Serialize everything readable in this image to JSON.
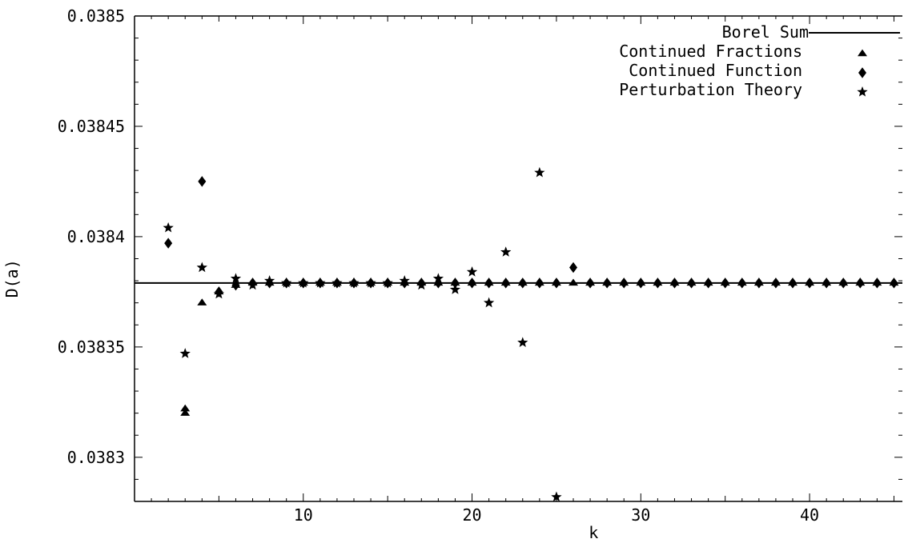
{
  "chart_data": {
    "type": "scatter",
    "title": "",
    "xlabel": "k",
    "ylabel": "D(a)",
    "xlim": [
      0,
      45.5
    ],
    "ylim": [
      0.03828,
      0.0385
    ],
    "x_ticks": [
      10,
      20,
      30,
      40
    ],
    "y_ticks": [
      0.0383,
      0.03835,
      0.0384,
      0.03845,
      0.0385
    ],
    "y_tick_labels": [
      "0.0383",
      "0.03835",
      "0.0384",
      "0.03845",
      "0.0385"
    ],
    "x_tick_labels": [
      "10",
      "20",
      "30",
      "40"
    ],
    "grid": false,
    "legend_position": "top-right",
    "reference_line": {
      "name": "Borel Sum",
      "y": 0.038379
    },
    "series": [
      {
        "name": "Continued Fractions",
        "marker": "triangle",
        "x": [
          3,
          3,
          4,
          5,
          6,
          7,
          8,
          9,
          10,
          11,
          12,
          13,
          14,
          15,
          16,
          17,
          18,
          19,
          20,
          21,
          22,
          23,
          24,
          25,
          26,
          27,
          28,
          29,
          30,
          31,
          32,
          33,
          34,
          35,
          36,
          37,
          38,
          39,
          40,
          41,
          42,
          43,
          44,
          45
        ],
        "y": [
          0.03832,
          0.038322,
          0.03837,
          0.038375,
          0.038378,
          0.038379,
          0.038379,
          0.038379,
          0.038379,
          0.038379,
          0.038379,
          0.038379,
          0.038379,
          0.038379,
          0.038379,
          0.038379,
          0.038379,
          0.038379,
          0.038379,
          0.038379,
          0.038379,
          0.038379,
          0.038379,
          0.038379,
          0.038379,
          0.038379,
          0.038379,
          0.038379,
          0.038379,
          0.038379,
          0.038379,
          0.038379,
          0.038379,
          0.038379,
          0.038379,
          0.038379,
          0.038379,
          0.038379,
          0.038379,
          0.038379,
          0.038379,
          0.038379,
          0.038379,
          0.038379
        ]
      },
      {
        "name": "Continued Function",
        "marker": "diamond",
        "x": [
          2,
          4,
          5,
          6,
          7,
          8,
          9,
          10,
          11,
          12,
          13,
          14,
          15,
          16,
          17,
          18,
          19,
          20,
          21,
          22,
          23,
          24,
          25,
          26,
          27,
          28,
          29,
          30,
          31,
          32,
          33,
          34,
          35,
          36,
          37,
          38,
          39,
          40,
          41,
          42,
          43,
          44,
          45
        ],
        "y": [
          0.038397,
          0.038425,
          0.038375,
          0.038378,
          0.038379,
          0.038379,
          0.038379,
          0.038379,
          0.038379,
          0.038379,
          0.038379,
          0.038379,
          0.038379,
          0.038379,
          0.038379,
          0.038379,
          0.038379,
          0.038379,
          0.038379,
          0.038379,
          0.038379,
          0.038379,
          0.038379,
          0.038386,
          0.038379,
          0.038379,
          0.038379,
          0.038379,
          0.038379,
          0.038379,
          0.038379,
          0.038379,
          0.038379,
          0.038379,
          0.038379,
          0.038379,
          0.038379,
          0.038379,
          0.038379,
          0.038379,
          0.038379,
          0.038379,
          0.038379
        ]
      },
      {
        "name": "Perturbation Theory",
        "marker": "star",
        "x": [
          2,
          3,
          4,
          5,
          6,
          7,
          8,
          9,
          10,
          11,
          12,
          13,
          14,
          15,
          16,
          17,
          18,
          19,
          20,
          21,
          22,
          23,
          24,
          25
        ],
        "y": [
          0.038404,
          0.038347,
          0.038386,
          0.038374,
          0.038381,
          0.038378,
          0.03838,
          0.038379,
          0.038379,
          0.038379,
          0.038379,
          0.038379,
          0.038379,
          0.038379,
          0.03838,
          0.038378,
          0.038381,
          0.038376,
          0.038384,
          0.03837,
          0.038393,
          0.038352,
          0.038429,
          0.038282
        ]
      }
    ]
  }
}
